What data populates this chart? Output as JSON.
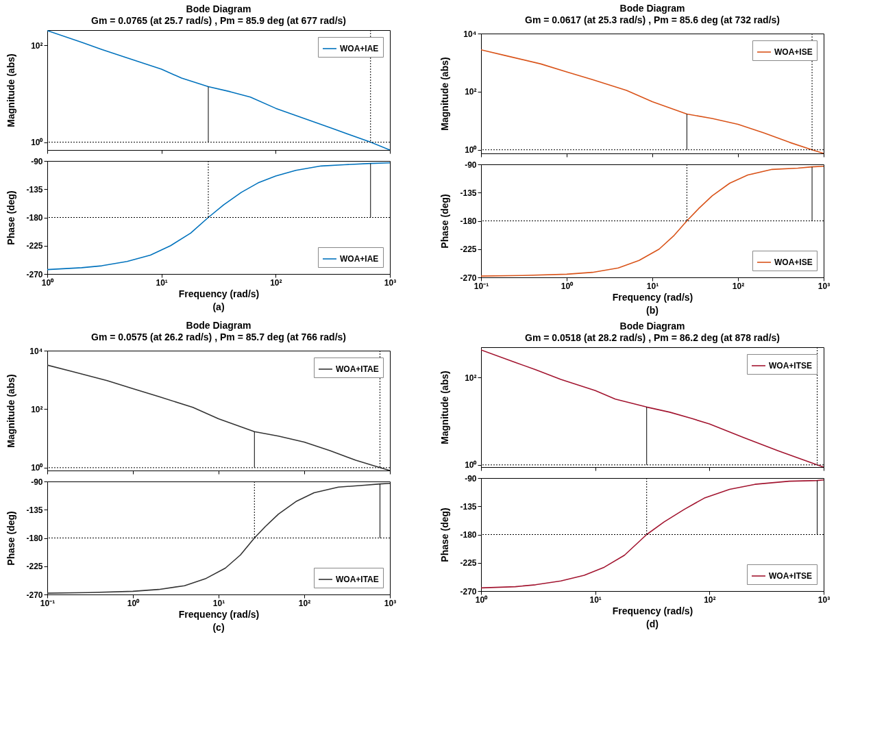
{
  "chart_data": [
    {
      "type": "line",
      "title": "Bode Diagram",
      "subtitle": "Gm = 0.0765  (at 25.7 rad/s) ,  Pm = 85.9 deg (at 677 rad/s)",
      "ylabel": "Magnitude (abs)",
      "log": "xy",
      "legend": "top right",
      "tick_labels": "y",
      "xlim": [
        1,
        1000
      ],
      "xticks": [
        1,
        10,
        100,
        1000
      ],
      "ylim": [
        0.69,
        205
      ],
      "yticks": [
        {
          "value": 1,
          "label": "10⁰"
        },
        {
          "value": 100,
          "label": "10²"
        }
      ],
      "x": [
        1,
        2,
        3,
        5,
        10,
        15,
        25.7,
        40,
        60,
        100,
        200,
        316,
        677,
        1000
      ],
      "series": [
        {
          "name": "WOA+IAE",
          "color": "#0072bd",
          "values": [
            200,
            115,
            82,
            55,
            32,
            21,
            14,
            11,
            8.5,
            5,
            2.8,
            1.9,
            1,
            0.69
          ]
        }
      ],
      "ref_lines": [
        {
          "axis": "y",
          "value": 1,
          "line_style": "dotted",
          "color": "#000000"
        },
        {
          "axis": "x",
          "value": 25.7,
          "line_style": "solid",
          "color": "#000000"
        },
        {
          "axis": "x",
          "value": 677,
          "line_style": "dotted",
          "color": "#000000"
        }
      ]
    },
    {
      "type": "line",
      "ylabel": "Phase (deg)",
      "xlabel": "Frequency  (rad/s)",
      "annotations": [
        "(a)"
      ],
      "log": "x",
      "legend": "bottom right",
      "xlim": [
        1,
        1000
      ],
      "xticks": [
        {
          "value": 1,
          "label": "10⁰"
        },
        {
          "value": 10,
          "label": "10¹"
        },
        {
          "value": 100,
          "label": "10²"
        },
        {
          "value": 1000,
          "label": "10³"
        }
      ],
      "ylim": [
        -270,
        -90
      ],
      "yticks": [
        -90,
        -135,
        -180,
        -225,
        -270
      ],
      "x": [
        1,
        2,
        3,
        5,
        8,
        12,
        18,
        25.7,
        35,
        50,
        70,
        100,
        150,
        250,
        400,
        677,
        1000
      ],
      "series": [
        {
          "name": "WOA+IAE",
          "color": "#0072bd",
          "values": [
            -263,
            -260,
            -257,
            -250,
            -240,
            -225,
            -205,
            -180,
            -160,
            -140,
            -125,
            -114,
            -105,
            -98,
            -96,
            -94,
            -93
          ]
        }
      ],
      "ref_lines": [
        {
          "axis": "y",
          "value": -180,
          "line_style": "dotted",
          "color": "#000000"
        },
        {
          "axis": "x",
          "value": 25.7,
          "line_style": "dotted",
          "color": "#000000"
        },
        {
          "axis": "x",
          "value": 677,
          "line_style": "solid",
          "color": "#000000"
        }
      ]
    },
    {
      "type": "line",
      "title": "Bode Diagram",
      "subtitle": "Gm = 0.0617  (at 25.3 rad/s) ,  Pm = 85.6 deg (at 732 rad/s)",
      "ylabel": "Magnitude (abs)",
      "log": "xy",
      "legend": "top right",
      "tick_labels": "y",
      "xlim": [
        0.1,
        1000
      ],
      "xticks": [
        0.1,
        1,
        10,
        100,
        1000
      ],
      "ylim": [
        0.75,
        10000
      ],
      "yticks": [
        {
          "value": 1,
          "label": "10⁰"
        },
        {
          "value": 100,
          "label": "10²"
        },
        {
          "value": 10000,
          "label": "10⁴"
        }
      ],
      "x": [
        0.1,
        0.2,
        0.5,
        1,
        2,
        5,
        10,
        25.3,
        50,
        100,
        200,
        400,
        732,
        1000
      ],
      "series": [
        {
          "name": "WOA+ISE",
          "color": "#d95319",
          "values": [
            2750,
            1700,
            900,
            480,
            260,
            110,
            45,
            17,
            12,
            7.5,
            3.8,
            1.8,
            1,
            0.75
          ]
        }
      ],
      "ref_lines": [
        {
          "axis": "y",
          "value": 1,
          "line_style": "dotted",
          "color": "#000000"
        },
        {
          "axis": "x",
          "value": 25.3,
          "line_style": "solid",
          "color": "#000000"
        },
        {
          "axis": "x",
          "value": 732,
          "line_style": "dotted",
          "color": "#000000"
        }
      ]
    },
    {
      "type": "line",
      "ylabel": "Phase (deg)",
      "xlabel": "Frequency  (rad/s)",
      "annotations": [
        "(b)"
      ],
      "log": "x",
      "legend": "bottom right",
      "xlim": [
        0.1,
        1000
      ],
      "xticks": [
        {
          "value": 0.1,
          "label": "10⁻¹"
        },
        {
          "value": 1,
          "label": "10⁰"
        },
        {
          "value": 10,
          "label": "10¹"
        },
        {
          "value": 100,
          "label": "10²"
        },
        {
          "value": 1000,
          "label": "10³"
        }
      ],
      "ylim": [
        -270,
        -90
      ],
      "yticks": [
        -90,
        -135,
        -180,
        -225,
        -270
      ],
      "x": [
        0.1,
        0.3,
        1,
        2,
        4,
        7,
        12,
        18,
        25.3,
        35,
        50,
        80,
        130,
        250,
        500,
        732,
        1000
      ],
      "series": [
        {
          "name": "WOA+ISE",
          "color": "#d95319",
          "values": [
            -268,
            -267,
            -265,
            -262,
            -255,
            -243,
            -225,
            -203,
            -180,
            -160,
            -140,
            -120,
            -107,
            -98,
            -96,
            -94,
            -93
          ]
        }
      ],
      "ref_lines": [
        {
          "axis": "y",
          "value": -180,
          "line_style": "dotted",
          "color": "#000000"
        },
        {
          "axis": "x",
          "value": 25.3,
          "line_style": "dotted",
          "color": "#000000"
        },
        {
          "axis": "x",
          "value": 732,
          "line_style": "solid",
          "color": "#000000"
        }
      ]
    },
    {
      "type": "line",
      "title": "Bode Diagram",
      "subtitle": "Gm = 0.0575  (at 26.2 rad/s) ,  Pm = 85.7 deg (at 766 rad/s)",
      "ylabel": "Magnitude (abs)",
      "log": "xy",
      "legend": "top right",
      "tick_labels": "y",
      "xlim": [
        0.1,
        1000
      ],
      "xticks": [
        0.1,
        1,
        10,
        100,
        1000
      ],
      "ylim": [
        0.8,
        10000
      ],
      "yticks": [
        {
          "value": 1,
          "label": "10⁰"
        },
        {
          "value": 100,
          "label": "10²"
        },
        {
          "value": 10000,
          "label": "10⁴"
        }
      ],
      "x": [
        0.1,
        0.2,
        0.5,
        1,
        2,
        5,
        10,
        26.2,
        50,
        100,
        200,
        400,
        766,
        1000
      ],
      "series": [
        {
          "name": "WOA+ITAE",
          "color": "#333333",
          "values": [
            3200,
            1900,
            950,
            500,
            270,
            115,
            47,
            17,
            12,
            7.5,
            3.8,
            1.8,
            1,
            0.8
          ]
        }
      ],
      "ref_lines": [
        {
          "axis": "y",
          "value": 1,
          "line_style": "dotted",
          "color": "#000000"
        },
        {
          "axis": "x",
          "value": 26.2,
          "line_style": "solid",
          "color": "#000000"
        },
        {
          "axis": "x",
          "value": 766,
          "line_style": "dotted",
          "color": "#000000"
        }
      ]
    },
    {
      "type": "line",
      "ylabel": "Phase (deg)",
      "xlabel": "Frequency  (rad/s)",
      "annotations": [
        "(c)"
      ],
      "log": "x",
      "legend": "bottom right",
      "xlim": [
        0.1,
        1000
      ],
      "xticks": [
        {
          "value": 0.1,
          "label": "10⁻¹"
        },
        {
          "value": 1,
          "label": "10⁰"
        },
        {
          "value": 10,
          "label": "10¹"
        },
        {
          "value": 100,
          "label": "10²"
        },
        {
          "value": 1000,
          "label": "10³"
        }
      ],
      "ylim": [
        -270,
        -90
      ],
      "yticks": [
        -90,
        -135,
        -180,
        -225,
        -270
      ],
      "x": [
        0.1,
        0.3,
        1,
        2,
        4,
        7,
        12,
        18,
        26.2,
        35,
        50,
        80,
        130,
        250,
        500,
        766,
        1000
      ],
      "series": [
        {
          "name": "WOA+ITAE",
          "color": "#333333",
          "values": [
            -268,
            -267,
            -265,
            -262,
            -256,
            -245,
            -228,
            -207,
            -180,
            -162,
            -142,
            -122,
            -108,
            -99,
            -96,
            -94,
            -93
          ]
        }
      ],
      "ref_lines": [
        {
          "axis": "y",
          "value": -180,
          "line_style": "dotted",
          "color": "#000000"
        },
        {
          "axis": "x",
          "value": 26.2,
          "line_style": "dotted",
          "color": "#000000"
        },
        {
          "axis": "x",
          "value": 766,
          "line_style": "solid",
          "color": "#000000"
        }
      ]
    },
    {
      "type": "line",
      "title": "Bode Diagram",
      "subtitle": "Gm = 0.0518  (at 28.2 rad/s) ,  Pm = 86.2 deg (at 878 rad/s)",
      "ylabel": "Magnitude (abs)",
      "log": "xy",
      "legend": "top right",
      "tick_labels": "y",
      "xlim": [
        1,
        1000
      ],
      "xticks": [
        1,
        10,
        100,
        1000
      ],
      "ylim": [
        0.89,
        490
      ],
      "yticks": [
        {
          "value": 1,
          "label": "10⁰"
        },
        {
          "value": 100,
          "label": "10²"
        }
      ],
      "x": [
        1,
        2,
        3,
        5,
        10,
        15,
        28.2,
        45,
        70,
        100,
        200,
        400,
        878,
        1000
      ],
      "series": [
        {
          "name": "WOA+ITSE",
          "color": "#a2142f",
          "values": [
            425,
            220,
            150,
            90,
            50,
            32,
            21,
            16,
            11.5,
            8.6,
            4.2,
            2.1,
            1,
            0.89
          ]
        }
      ],
      "ref_lines": [
        {
          "axis": "y",
          "value": 1,
          "line_style": "dotted",
          "color": "#000000"
        },
        {
          "axis": "x",
          "value": 28.2,
          "line_style": "solid",
          "color": "#000000"
        },
        {
          "axis": "x",
          "value": 878,
          "line_style": "dotted",
          "color": "#000000"
        }
      ]
    },
    {
      "type": "line",
      "ylabel": "Phase (deg)",
      "xlabel": "Frequency  (rad/s)",
      "annotations": [
        "(d)"
      ],
      "log": "x",
      "legend": "bottom right",
      "xlim": [
        1,
        1000
      ],
      "xticks": [
        {
          "value": 1,
          "label": "10⁰"
        },
        {
          "value": 10,
          "label": "10¹"
        },
        {
          "value": 100,
          "label": "10²"
        },
        {
          "value": 1000,
          "label": "10³"
        }
      ],
      "ylim": [
        -270,
        -90
      ],
      "yticks": [
        -90,
        -135,
        -180,
        -225,
        -270
      ],
      "x": [
        1,
        2,
        3,
        5,
        8,
        12,
        18,
        28.2,
        40,
        60,
        90,
        150,
        250,
        500,
        878,
        1000
      ],
      "series": [
        {
          "name": "WOA+ITSE",
          "color": "#a2142f",
          "values": [
            -265,
            -263,
            -260,
            -254,
            -245,
            -232,
            -213,
            -180,
            -160,
            -140,
            -122,
            -108,
            -100,
            -95,
            -94,
            -93
          ]
        }
      ],
      "ref_lines": [
        {
          "axis": "y",
          "value": -180,
          "line_style": "dotted",
          "color": "#000000"
        },
        {
          "axis": "x",
          "value": 28.2,
          "line_style": "dotted",
          "color": "#000000"
        },
        {
          "axis": "x",
          "value": 878,
          "line_style": "solid",
          "color": "#000000"
        }
      ]
    }
  ]
}
